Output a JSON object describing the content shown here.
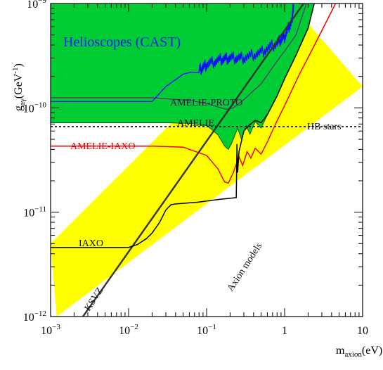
{
  "chart_data": {
    "type": "area",
    "log_x": true,
    "log_y": true,
    "xlim": [
      0.001,
      10
    ],
    "ylim": [
      1e-12,
      1e-09
    ],
    "x_ticks": [
      {
        "v": 0.001,
        "base": "10",
        "exp": "−3"
      },
      {
        "v": 0.01,
        "base": "10",
        "exp": "−2"
      },
      {
        "v": 0.1,
        "base": "10",
        "exp": "−1"
      },
      {
        "v": 1,
        "base": "1",
        "exp": ""
      },
      {
        "v": 10,
        "base": "10",
        "exp": ""
      }
    ],
    "y_ticks": [
      {
        "v": 1e-12,
        "base": "10",
        "exp": "−12"
      },
      {
        "v": 1e-11,
        "base": "10",
        "exp": "−11"
      },
      {
        "v": 1e-10,
        "base": "10",
        "exp": "−10"
      },
      {
        "v": 1e-09,
        "base": "10",
        "exp": "−9"
      }
    ],
    "xlabel": {
      "main": "m",
      "sub": "axion",
      "unit": "(eV)"
    },
    "ylabel": {
      "main": "g",
      "sub": "aγ",
      "unit": "(GeV",
      "sup": "-1",
      "close": ")"
    },
    "axion_band": {
      "color": "#ffff00",
      "lower_edge": [
        [
          0.0012,
          1e-12
        ],
        [
          10,
          1.6e-10
        ]
      ],
      "upper_edge": [
        [
          0.001,
          5e-12
        ],
        [
          1.2,
          1e-09
        ]
      ],
      "label": "Axion models"
    },
    "ksvz_line": {
      "label": "KSVZ",
      "color": "#333333",
      "points": [
        [
          0.0026,
          1e-12
        ],
        [
          1.75,
          1e-09
        ]
      ]
    },
    "hb_stars": {
      "label": "HB stars",
      "value": 6.6e-11
    },
    "regions": [
      {
        "name": "Helioscopes (CAST)",
        "color": "#afbbc4",
        "edge": "#1010ff",
        "boundary": [
          [
            0.001,
            1.15e-10
          ],
          [
            0.02,
            1.15e-10
          ],
          [
            0.03,
            1.6e-10
          ],
          [
            0.05,
            2.1e-10
          ],
          [
            0.08,
            2.3e-10
          ],
          [
            0.1,
            2.6e-10
          ],
          [
            0.15,
            2.9e-10
          ],
          [
            0.2,
            3e-10
          ],
          [
            0.3,
            3e-10
          ],
          [
            0.5,
            3.4e-10
          ],
          [
            0.8,
            4.2e-10
          ],
          [
            1,
            4.8e-10
          ],
          [
            1.25,
            7e-10
          ],
          [
            1.3,
            1e-09
          ]
        ]
      },
      {
        "name": "AMELIE-PROTO",
        "color": "#cc00cc",
        "boundary": [
          [
            0.001,
            1.25e-10
          ],
          [
            0.02,
            1.25e-10
          ],
          [
            0.03,
            1.22e-10
          ],
          [
            0.06,
            1.18e-10
          ],
          [
            0.1,
            1.1e-10
          ],
          [
            0.14,
            1.02e-10
          ],
          [
            0.18,
            9.7e-11
          ],
          [
            0.22,
            1e-10
          ],
          [
            0.3,
            1.2e-10
          ],
          [
            0.5,
            1.7e-10
          ],
          [
            0.8,
            2.8e-10
          ],
          [
            1,
            3.5e-10
          ],
          [
            1.4,
            5e-10
          ],
          [
            1.9,
            1e-09
          ]
        ]
      },
      {
        "name": "AMELIE",
        "color": "#00cc33",
        "boundary": [
          [
            0.001,
            7.2e-11
          ],
          [
            0.03,
            7.2e-11
          ],
          [
            0.06,
            7.1e-11
          ],
          [
            0.1,
            6.8e-11
          ],
          [
            0.14,
            5.5e-11
          ],
          [
            0.17,
            4.3e-11
          ],
          [
            0.19,
            4e-11
          ],
          [
            0.21,
            4.6e-11
          ],
          [
            0.25,
            6.4e-11
          ],
          [
            0.28,
            5e-11
          ],
          [
            0.32,
            6.8e-11
          ],
          [
            0.36,
            5.6e-11
          ],
          [
            0.42,
            7.4e-11
          ],
          [
            0.5,
            6.4e-11
          ],
          [
            0.6,
            8.5e-11
          ],
          [
            0.8,
            1.3e-10
          ],
          [
            1,
            1.9e-10
          ],
          [
            1.4,
            3.2e-10
          ],
          [
            2,
            5.8e-10
          ],
          [
            2.4,
            1e-09
          ]
        ]
      }
    ],
    "curves": [
      {
        "name": "AMELIE-IAXO",
        "color": "#ee0000",
        "points": [
          [
            0.001,
            4.3e-11
          ],
          [
            0.02,
            4.3e-11
          ],
          [
            0.05,
            4.2e-11
          ],
          [
            0.1,
            3.5e-11
          ],
          [
            0.14,
            2.6e-11
          ],
          [
            0.17,
            1.95e-11
          ],
          [
            0.19,
            1.9e-11
          ],
          [
            0.22,
            2.4e-11
          ],
          [
            0.26,
            3.4e-11
          ],
          [
            0.29,
            2.8e-11
          ],
          [
            0.33,
            3.8e-11
          ],
          [
            0.37,
            3.3e-11
          ],
          [
            0.42,
            4.1e-11
          ],
          [
            0.5,
            3.6e-11
          ],
          [
            0.6,
            4.7e-11
          ],
          [
            0.8,
            7.5e-11
          ],
          [
            1,
            1.05e-10
          ],
          [
            1.5,
            2e-10
          ],
          [
            2.5,
            4.2e-10
          ],
          [
            4.5,
            1e-09
          ]
        ]
      },
      {
        "name": "IAXO",
        "color": "#000000",
        "points": [
          [
            0.001,
            4.6e-12
          ],
          [
            0.005,
            4.6e-12
          ],
          [
            0.01,
            4.6e-12
          ],
          [
            0.013,
            4.9e-12
          ],
          [
            0.017,
            5.6e-12
          ],
          [
            0.02,
            6.3e-12
          ],
          [
            0.025,
            8e-12
          ],
          [
            0.03,
            1.05e-11
          ],
          [
            0.035,
            1.18e-11
          ],
          [
            0.04,
            1.2e-11
          ],
          [
            0.06,
            1.23e-11
          ],
          [
            0.08,
            1.25e-11
          ],
          [
            0.1,
            1.28e-11
          ],
          [
            0.15,
            1.33e-11
          ],
          [
            0.2,
            1.36e-11
          ],
          [
            0.24,
            1.38e-11
          ],
          [
            0.245,
            4.5e-11
          ],
          [
            0.25,
            2.4e-11
          ],
          [
            0.26,
            3.8e-11
          ],
          [
            0.3,
            6e-11
          ],
          [
            0.35,
            6.8e-11
          ],
          [
            0.42,
            7.6e-11
          ],
          [
            0.5,
            7.2e-11
          ],
          [
            0.6,
            8.6e-11
          ],
          [
            0.8,
            1.3e-10
          ],
          [
            1,
            1.9e-10
          ],
          [
            1.4,
            3.2e-10
          ],
          [
            2,
            5.8e-10
          ],
          [
            2.4,
            1e-09
          ]
        ]
      }
    ],
    "labels": {
      "cast": "Helioscopes (CAST)",
      "proto": "AMELIE-PROTO",
      "amelie": "AMELIE",
      "amelie_iaxo": "AMELIE-IAXO",
      "iaxo": "IAXO",
      "hb": "HB stars",
      "axion": "Axion models",
      "ksvz": "KSVZ"
    },
    "colors": {
      "cast_text": "#1a1aff",
      "amelie_iaxo_text": "#ee0000",
      "proto_text": "#550055",
      "dark_text": "#111111"
    }
  }
}
